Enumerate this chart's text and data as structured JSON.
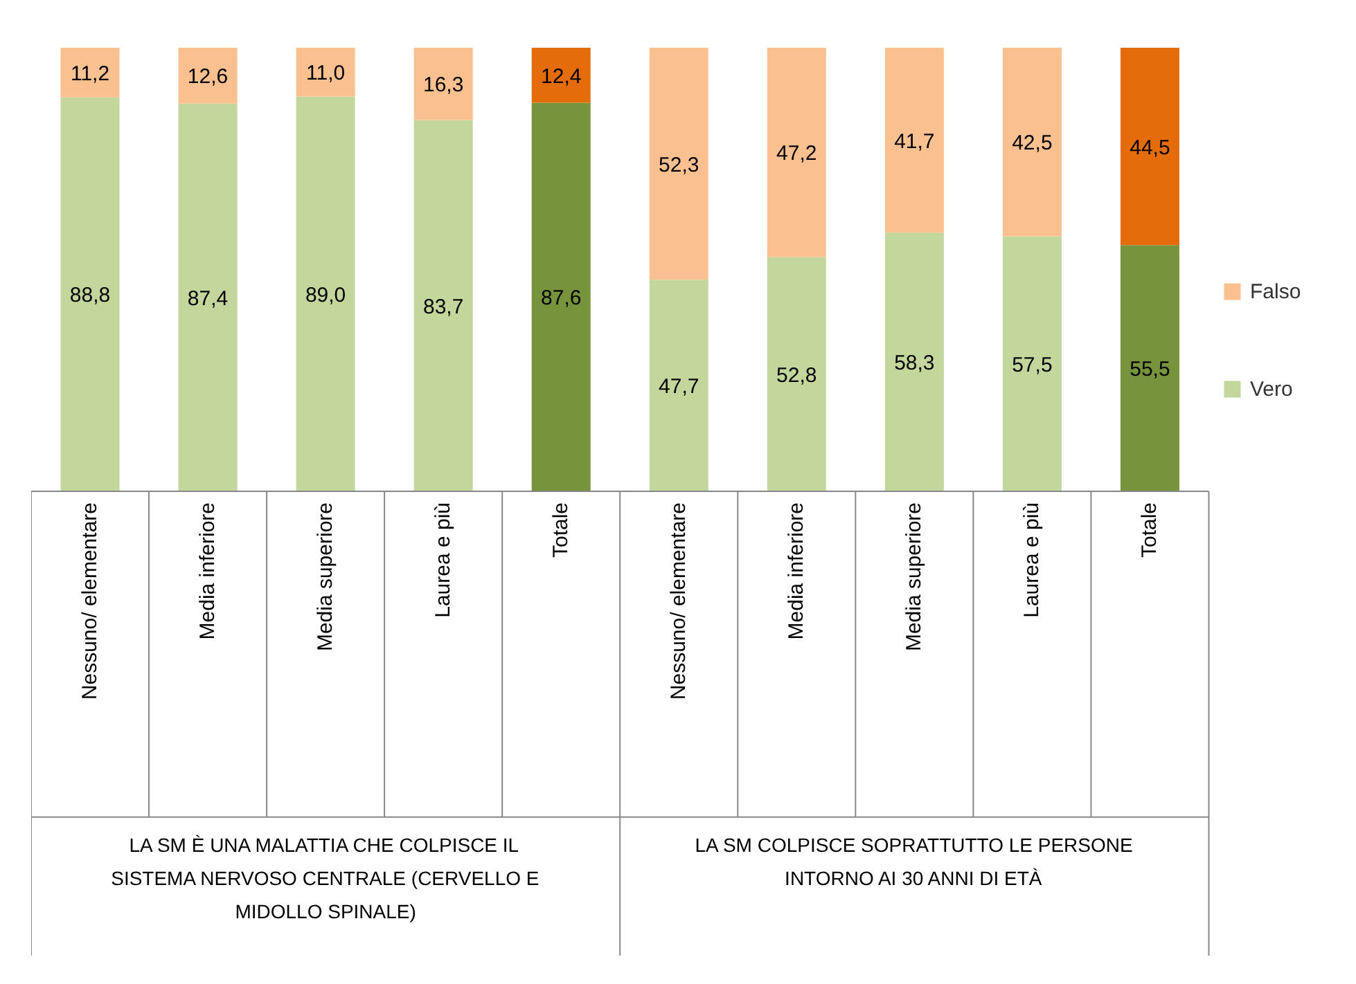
{
  "chart_data": {
    "type": "bar",
    "stacked": true,
    "legend": "right",
    "categories": [
      "Nessuno/ elementare",
      "Media inferiore",
      "Media superiore",
      "Laurea e più",
      "Totale",
      "Nessuno/ elementare",
      "Media inferiore",
      "Media superiore",
      "Laurea e più",
      "Totale"
    ],
    "series": [
      {
        "name": "Vero",
        "color": "#c3d69b",
        "colors": [
          "#c3d69b",
          "#c3d69b",
          "#c3d69b",
          "#c3d69b",
          "#77933c",
          "#c3d69b",
          "#c3d69b",
          "#c3d69b",
          "#c3d69b",
          "#77933c"
        ],
        "values": [
          88.8,
          87.4,
          89.0,
          83.7,
          87.6,
          47.7,
          52.8,
          58.3,
          57.5,
          55.5
        ],
        "value_labels": [
          "88,8",
          "87,4",
          "89,0",
          "83,7",
          "87,6",
          "47,7",
          "52,8",
          "58,3",
          "57,5",
          "55,5"
        ]
      },
      {
        "name": "Falso",
        "color": "#fac090",
        "colors": [
          "#fac090",
          "#fac090",
          "#fac090",
          "#fac090",
          "#e46c0a",
          "#fac090",
          "#fac090",
          "#fac090",
          "#fac090",
          "#e46c0a"
        ],
        "values": [
          11.2,
          12.6,
          11.0,
          16.3,
          12.4,
          52.3,
          47.2,
          41.7,
          42.5,
          44.5
        ],
        "value_labels": [
          "11,2",
          "12,6",
          "11,0",
          "16,3",
          "12,4",
          "52,3",
          "47,2",
          "41,7",
          "42,5",
          "44,5"
        ]
      }
    ],
    "annotations": [
      "LA SM È UNA MALATTIA CHE COLPISCE IL SISTEMA NERVOSO CENTRALE (CERVELLO E MIDOLLO SPINALE)",
      "LA SM COLPISCE SOPRATTUTTO LE PERSONE INTORNO AI 30 ANNI DI ETÀ"
    ]
  }
}
